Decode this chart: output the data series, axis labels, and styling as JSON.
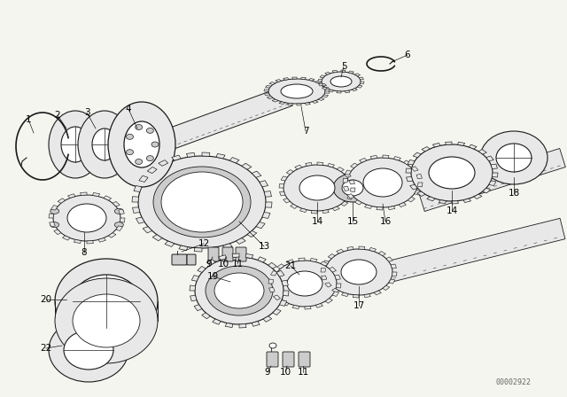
{
  "background_color": "#f5f5f0",
  "line_color": "#1a1a1a",
  "fill_light": "#e8e8e8",
  "fill_mid": "#cccccc",
  "fill_dark": "#999999",
  "watermark": "00002922",
  "fig_width": 6.4,
  "fig_height": 4.48,
  "dpi": 100,
  "label_fontsize": 7.5,
  "watermark_fontsize": 6
}
